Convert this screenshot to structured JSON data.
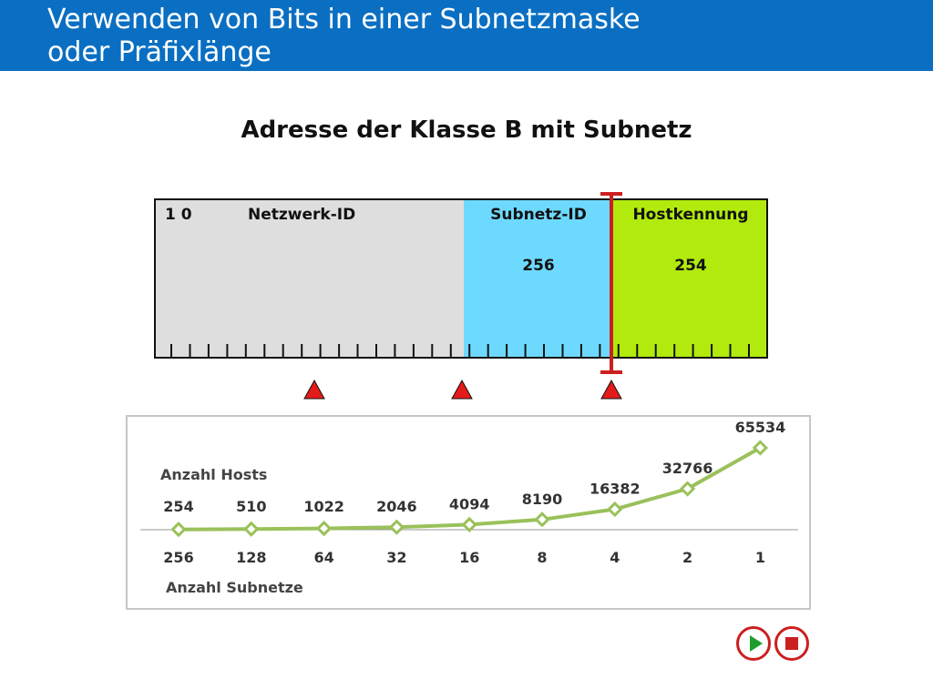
{
  "header": {
    "title_line1": "Verwenden von Bits in einer Subnetzmaske",
    "title_line2": "oder Präfixlänge"
  },
  "subtitle": "Adresse der Klasse B mit Subnetz",
  "address": {
    "bits_prefix": "1 0",
    "network_label": "Netzwerk-ID",
    "subnet_label": "Subnetz-ID",
    "host_label": "Hostkennung",
    "subnet_count": "256",
    "host_count": "254",
    "bit_ticks": 32,
    "colors": {
      "network": "#dedede",
      "subnet": "#6dd9ff",
      "host": "#b2ea0e",
      "marker": "#cc1f1f"
    }
  },
  "controls": {
    "play_icon": "play-icon",
    "stop_icon": "stop-icon"
  },
  "chart_data": {
    "type": "line",
    "title": "",
    "hosts_label": "Anzahl Hosts",
    "subnets_label": "Anzahl Subnetze",
    "categories": [
      "256",
      "128",
      "64",
      "32",
      "16",
      "8",
      "4",
      "2",
      "1"
    ],
    "series": [
      {
        "name": "Anzahl Hosts",
        "values": [
          254,
          510,
          1022,
          2046,
          4094,
          8190,
          16382,
          32766,
          65534
        ]
      }
    ],
    "ylim": [
      0,
      65534
    ],
    "grid": false,
    "colors": {
      "line": "#9ac15a",
      "axis": "#999999"
    }
  }
}
